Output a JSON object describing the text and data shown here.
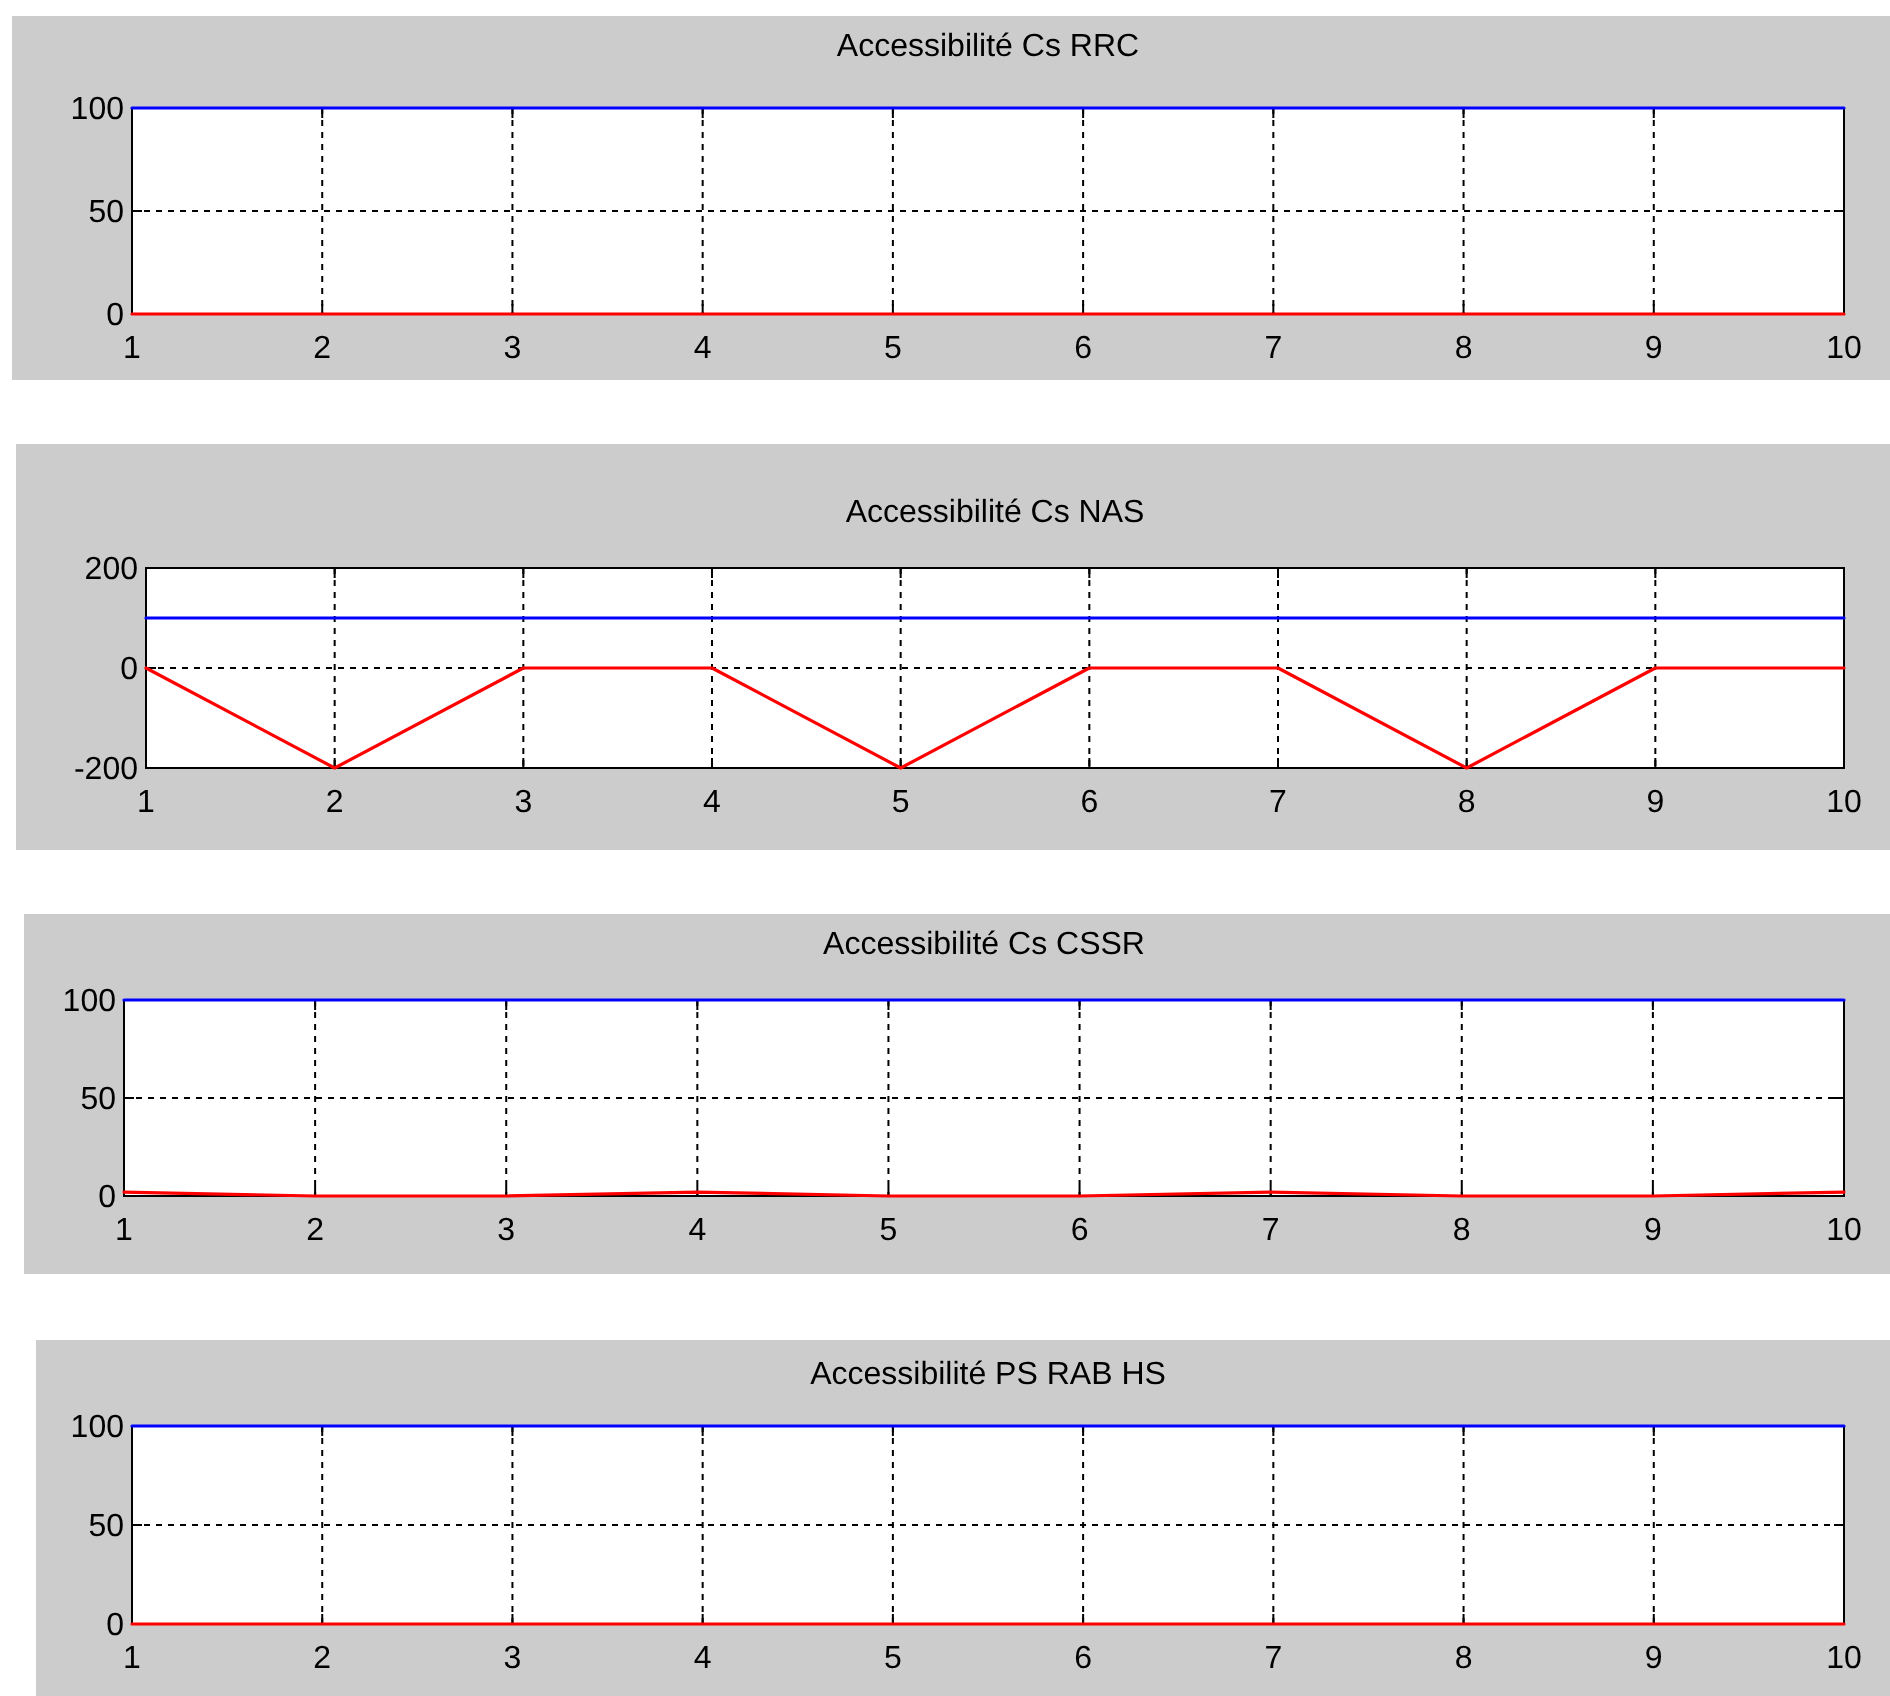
{
  "chart_data": [
    {
      "type": "line",
      "title": "Accessibilité Cs RRC",
      "x": [
        1,
        2,
        3,
        4,
        5,
        6,
        7,
        8,
        9,
        10
      ],
      "series": [
        {
          "color": "#0000ff",
          "values": [
            100,
            100,
            100,
            100,
            100,
            100,
            100,
            100,
            100,
            100
          ]
        },
        {
          "color": "#ff0000",
          "values": [
            0,
            0,
            0,
            0,
            0,
            0,
            0,
            0,
            0,
            0
          ]
        }
      ],
      "xlim": [
        1,
        10
      ],
      "xticks": [
        1,
        2,
        3,
        4,
        5,
        6,
        7,
        8,
        9,
        10
      ],
      "ylim": [
        0,
        100
      ],
      "yticks": [
        0,
        50,
        100
      ],
      "grid": true
    },
    {
      "type": "line",
      "title": "Accessibilité Cs NAS",
      "x": [
        1,
        2,
        3,
        4,
        5,
        6,
        7,
        8,
        9,
        10
      ],
      "series": [
        {
          "color": "#0000ff",
          "values": [
            100,
            100,
            100,
            100,
            100,
            100,
            100,
            100,
            100,
            100
          ]
        },
        {
          "color": "#ff0000",
          "values": [
            0,
            -200,
            0,
            0,
            -200,
            0,
            0,
            -200,
            0,
            0
          ]
        }
      ],
      "xlim": [
        1,
        10
      ],
      "xticks": [
        1,
        2,
        3,
        4,
        5,
        6,
        7,
        8,
        9,
        10
      ],
      "ylim": [
        -200,
        200
      ],
      "yticks": [
        -200,
        0,
        200
      ],
      "grid": true
    },
    {
      "type": "line",
      "title": "Accessibilité Cs CSSR",
      "x": [
        1,
        2,
        3,
        4,
        5,
        6,
        7,
        8,
        9,
        10
      ],
      "series": [
        {
          "color": "#0000ff",
          "values": [
            100,
            100,
            100,
            100,
            100,
            100,
            100,
            100,
            100,
            100
          ]
        },
        {
          "color": "#ff0000",
          "values": [
            2,
            0,
            0,
            2,
            0,
            0,
            2,
            0,
            0,
            2
          ]
        }
      ],
      "xlim": [
        1,
        10
      ],
      "xticks": [
        1,
        2,
        3,
        4,
        5,
        6,
        7,
        8,
        9,
        10
      ],
      "ylim": [
        0,
        100
      ],
      "yticks": [
        0,
        50,
        100
      ],
      "grid": true
    },
    {
      "type": "line",
      "title": "Accessibilité PS RAB HS",
      "x": [
        1,
        2,
        3,
        4,
        5,
        6,
        7,
        8,
        9,
        10
      ],
      "series": [
        {
          "color": "#0000ff",
          "values": [
            100,
            100,
            100,
            100,
            100,
            100,
            100,
            100,
            100,
            100
          ]
        },
        {
          "color": "#ff0000",
          "values": [
            0,
            0,
            0,
            0,
            0,
            0,
            0,
            0,
            0,
            0
          ]
        }
      ],
      "xlim": [
        1,
        10
      ],
      "xticks": [
        1,
        2,
        3,
        4,
        5,
        6,
        7,
        8,
        9,
        10
      ],
      "ylim": [
        0,
        100
      ],
      "yticks": [
        0,
        50,
        100
      ],
      "grid": true
    }
  ]
}
